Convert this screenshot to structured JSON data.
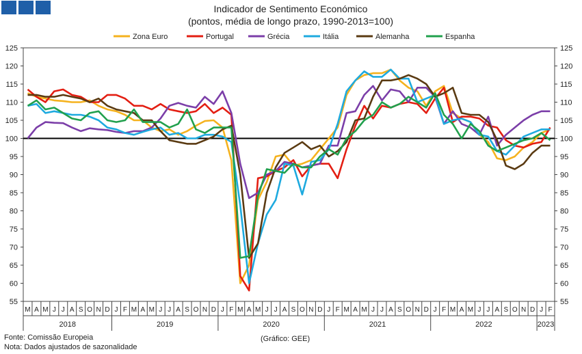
{
  "header": {
    "logo_squares": 3,
    "logo_color": "#1f5fa8"
  },
  "footer": {
    "source": "Fonte: Comissão Europeia",
    "note": "Nota: Dados ajustados de sazonalidade",
    "credit": "(Gráfico: GEE)"
  },
  "chart_data": {
    "type": "line",
    "title": "Indicador de Sentimento Económico",
    "subtitle": "(pontos, média de longo prazo, 1990-2013=100)",
    "ylim": [
      55,
      125
    ],
    "yticks": [
      55,
      60,
      65,
      70,
      75,
      80,
      85,
      90,
      95,
      100,
      105,
      110,
      115,
      120,
      125
    ],
    "reference_line": 100,
    "legend_position": "top",
    "grid": false,
    "x": [
      "M",
      "A",
      "M",
      "J",
      "J",
      "A",
      "S",
      "O",
      "N",
      "D",
      "J",
      "F",
      "M",
      "A",
      "M",
      "J",
      "J",
      "A",
      "S",
      "O",
      "N",
      "D",
      "J",
      "F",
      "M",
      "A",
      "M",
      "J",
      "J",
      "A",
      "S",
      "O",
      "N",
      "D",
      "J",
      "F",
      "M",
      "A",
      "M",
      "J",
      "J",
      "A",
      "S",
      "O",
      "N",
      "D",
      "J",
      "F",
      "M",
      "A",
      "M",
      "J",
      "J",
      "A",
      "S",
      "O",
      "N",
      "D",
      "J",
      "F"
    ],
    "year_groups": [
      {
        "label": "2018",
        "start": 0,
        "end": 9
      },
      {
        "label": "2019",
        "start": 10,
        "end": 21
      },
      {
        "label": "2020",
        "start": 22,
        "end": 33
      },
      {
        "label": "2021",
        "start": 34,
        "end": 45
      },
      {
        "label": "2022",
        "start": 46,
        "end": 57
      },
      {
        "label": "2023",
        "start": 58,
        "end": 59
      }
    ],
    "series": [
      {
        "name": "Zona Euro",
        "color": "#f5b21e",
        "values": [
          112.5,
          111.5,
          111.0,
          110.5,
          110.3,
          110.0,
          110.0,
          110.5,
          109.0,
          108.0,
          107.5,
          106.5,
          105.0,
          105.0,
          103.0,
          102.0,
          102.5,
          101.0,
          102.0,
          103.5,
          104.8,
          105.0,
          103.0,
          94.0,
          60.0,
          65.0,
          83.0,
          88.0,
          95.0,
          95.5,
          92.5,
          93.0,
          94.0,
          97.0,
          100.0,
          103.0,
          112.0,
          116.0,
          117.5,
          118.0,
          118.0,
          119.0,
          116.0,
          114.0,
          113.0,
          109.0,
          113.0,
          114.5,
          107.0,
          105.5,
          104.5,
          101.0,
          99.0,
          94.5,
          94.0,
          95.0,
          97.5,
          99.0,
          101.5,
          102.5
        ]
      },
      {
        "name": "Portugal",
        "color": "#e31e12",
        "values": [
          113.5,
          111.5,
          110.0,
          113.0,
          113.5,
          112.0,
          111.5,
          110.0,
          110.0,
          112.0,
          112.0,
          111.0,
          109.0,
          109.0,
          108.0,
          109.5,
          108.0,
          107.5,
          107.0,
          107.5,
          109.5,
          107.0,
          108.5,
          106.5,
          62.0,
          58.0,
          89.0,
          89.5,
          91.0,
          92.0,
          94.0,
          89.5,
          92.5,
          93.0,
          93.0,
          89.0,
          97.0,
          103.5,
          109.0,
          105.5,
          109.0,
          108.5,
          109.5,
          110.0,
          109.5,
          107.0,
          111.0,
          114.0,
          104.5,
          106.0,
          106.0,
          105.5,
          103.5,
          103.0,
          99.5,
          98.0,
          97.5,
          98.5,
          99.0,
          103.0
        ]
      },
      {
        "name": "Grécia",
        "color": "#7b3ea8",
        "values": [
          100.0,
          103.0,
          104.5,
          104.3,
          104.2,
          103.0,
          102.0,
          102.8,
          102.5,
          102.3,
          101.8,
          101.5,
          102.0,
          102.0,
          103.0,
          105.5,
          109.0,
          109.8,
          109.0,
          108.5,
          111.5,
          109.5,
          113.0,
          107.0,
          93.0,
          83.5,
          85.0,
          90.0,
          91.0,
          93.5,
          93.0,
          92.0,
          92.5,
          93.0,
          98.0,
          98.0,
          107.0,
          107.5,
          112.0,
          114.5,
          110.5,
          113.5,
          113.0,
          110.0,
          114.0,
          114.0,
          111.5,
          104.0,
          107.5,
          104.0,
          103.0,
          101.0,
          106.0,
          98.0,
          101.0,
          103.0,
          105.0,
          106.5,
          107.5,
          107.5
        ]
      },
      {
        "name": "Itália",
        "color": "#1eaadf",
        "values": [
          109.0,
          109.5,
          107.0,
          107.5,
          107.0,
          106.5,
          106.5,
          106.0,
          105.0,
          103.0,
          102.5,
          101.5,
          101.0,
          101.8,
          102.5,
          103.0,
          101.0,
          101.5,
          100.0,
          100.0,
          101.0,
          101.0,
          100.5,
          99.0,
          81.5,
          60.0,
          71.0,
          79.0,
          83.0,
          93.0,
          92.5,
          84.5,
          93.5,
          94.0,
          97.0,
          104.0,
          113.0,
          116.0,
          118.5,
          117.0,
          117.0,
          119.0,
          116.5,
          116.5,
          110.0,
          111.0,
          112.0,
          104.0,
          105.0,
          105.5,
          104.5,
          101.0,
          100.5,
          96.5,
          95.5,
          98.0,
          100.5,
          101.5,
          102.5,
          102.5
        ]
      },
      {
        "name": "Alemanha",
        "color": "#5a3a12",
        "values": [
          112.0,
          112.0,
          111.5,
          111.5,
          112.0,
          111.5,
          111.0,
          110.0,
          111.0,
          109.0,
          108.0,
          107.5,
          107.0,
          105.0,
          105.0,
          102.0,
          99.5,
          99.0,
          98.5,
          98.5,
          99.5,
          100.5,
          102.5,
          103.5,
          90.0,
          67.0,
          71.0,
          85.0,
          92.0,
          96.0,
          97.5,
          99.0,
          97.0,
          98.0,
          95.0,
          96.5,
          99.0,
          105.0,
          105.5,
          111.5,
          116.0,
          116.0,
          116.5,
          117.5,
          116.5,
          115.0,
          111.5,
          112.5,
          114.0,
          107.0,
          106.5,
          106.5,
          104.5,
          99.5,
          92.5,
          91.5,
          93.0,
          96.0,
          98.0,
          98.0
        ]
      },
      {
        "name": "Espanha",
        "color": "#21a04d",
        "values": [
          109.0,
          110.5,
          108.0,
          108.5,
          107.0,
          105.5,
          105.0,
          107.0,
          107.5,
          105.0,
          104.5,
          105.0,
          108.0,
          104.5,
          104.5,
          104.5,
          103.0,
          104.0,
          108.0,
          102.5,
          101.5,
          103.0,
          103.0,
          103.0,
          67.0,
          67.5,
          84.0,
          91.5,
          91.0,
          90.5,
          93.0,
          92.0,
          92.0,
          95.0,
          97.0,
          95.5,
          100.0,
          102.0,
          105.0,
          106.5,
          110.0,
          108.5,
          109.5,
          111.5,
          110.0,
          108.5,
          112.5,
          106.5,
          104.0,
          100.0,
          104.0,
          102.0,
          98.0,
          96.5,
          97.5,
          98.5,
          99.5,
          100.0,
          101.5,
          99.5
        ]
      }
    ]
  }
}
